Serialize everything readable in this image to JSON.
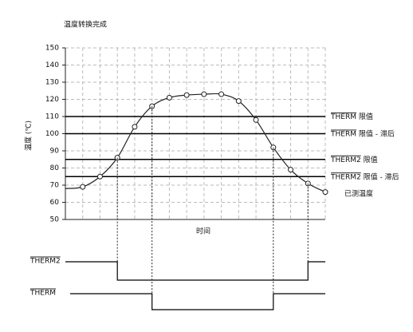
{
  "chart_data": {
    "type": "line",
    "title": "温度转换完成",
    "y_label": "温度 (℃)",
    "x_label": "时间",
    "x": [
      0,
      1,
      2,
      3,
      4,
      5,
      6,
      7,
      8,
      9,
      10,
      11,
      12,
      13,
      14,
      15
    ],
    "xlim": [
      0,
      15
    ],
    "series": [
      {
        "name": "已测温度",
        "color": "#222222",
        "values": [
          68,
          69,
          75,
          86,
          104,
          116,
          121,
          122.5,
          123,
          123,
          119,
          108,
          92,
          79,
          71,
          66
        ]
      }
    ],
    "ylim": [
      50,
      150
    ],
    "yticks": [
      50,
      60,
      70,
      80,
      90,
      100,
      110,
      120,
      130,
      140,
      150
    ],
    "grid": true,
    "thresholds": [
      {
        "signal": "THERM",
        "label": "限值",
        "value": 110
      },
      {
        "signal": "THERM",
        "label": "限值 - 滞后",
        "value": 100
      },
      {
        "signal": "THERM2",
        "label": "限值",
        "value": 85
      },
      {
        "signal": "THERM2",
        "label": "限值 - 滞后",
        "value": 75
      }
    ],
    "signals": [
      {
        "name": "THERM2",
        "low_from": 3,
        "low_to": 14
      },
      {
        "name": "THERM",
        "low_from": 5,
        "low_to": 12
      }
    ]
  }
}
